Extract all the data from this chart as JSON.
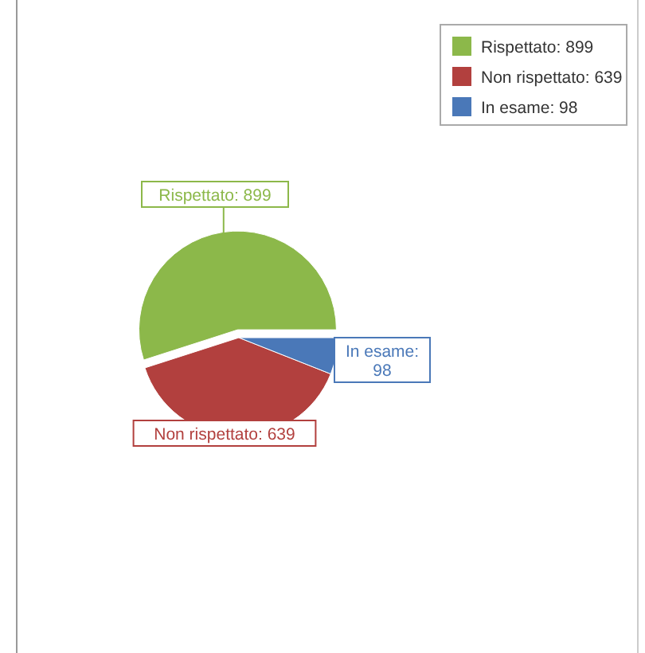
{
  "chart_data": {
    "type": "pie",
    "categories": [
      "Rispettato: 899",
      "Non rispettato: 639",
      "In esame: 98"
    ],
    "values": [
      899,
      639,
      98
    ],
    "colors": [
      "#8cb84a",
      "#b2403e",
      "#4a78b8"
    ],
    "legend": "top right"
  }
}
